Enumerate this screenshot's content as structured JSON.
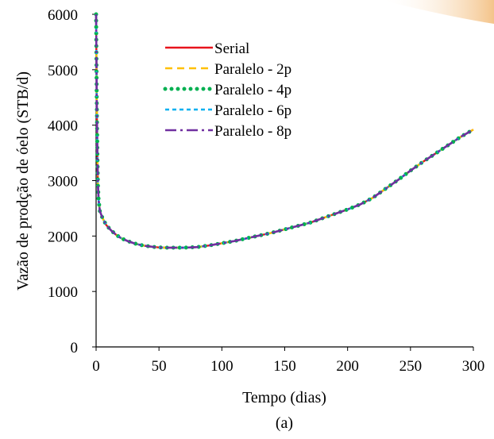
{
  "chart_data": {
    "type": "line",
    "title": "",
    "caption": "(a)",
    "xlabel": "Tempo (dias)",
    "ylabel": "Vazão de prodção de óelo (STB/d)",
    "xlim": [
      0,
      300
    ],
    "ylim": [
      0,
      6000
    ],
    "xticks": [
      "0",
      "50",
      "100",
      "150",
      "200",
      "250",
      "300"
    ],
    "yticks": [
      "0",
      "1000",
      "2000",
      "3000",
      "4000",
      "5000",
      "6000"
    ],
    "grid": false,
    "legend_position": "upper-left inside plot",
    "x": [
      0,
      0.5,
      1,
      1.5,
      2,
      3,
      5,
      8,
      12,
      16,
      20,
      25,
      30,
      35,
      40,
      45,
      50,
      55,
      60,
      65,
      70,
      75,
      80,
      90,
      100,
      110,
      120,
      130,
      140,
      150,
      160,
      170,
      180,
      190,
      200,
      210,
      220,
      230,
      240,
      250,
      260,
      270,
      280,
      290,
      300
    ],
    "series": [
      {
        "name": "Serial",
        "color": "#e8141c",
        "style": "solid",
        "values": [
          6000,
          4500,
          3500,
          2900,
          2650,
          2450,
          2330,
          2200,
          2100,
          2020,
          1960,
          1910,
          1870,
          1840,
          1820,
          1805,
          1795,
          1790,
          1790,
          1790,
          1790,
          1795,
          1800,
          1830,
          1870,
          1910,
          1960,
          2010,
          2060,
          2120,
          2180,
          2240,
          2320,
          2400,
          2480,
          2570,
          2690,
          2850,
          3010,
          3180,
          3340,
          3490,
          3640,
          3790,
          3920
        ]
      },
      {
        "name": "Paralelo - 2p",
        "color": "#ffc000",
        "style": "dash",
        "values": [
          6000,
          4500,
          3500,
          2900,
          2650,
          2450,
          2330,
          2200,
          2100,
          2020,
          1960,
          1910,
          1870,
          1840,
          1820,
          1805,
          1795,
          1790,
          1790,
          1790,
          1790,
          1795,
          1800,
          1830,
          1870,
          1910,
          1960,
          2010,
          2060,
          2120,
          2180,
          2240,
          2320,
          2400,
          2480,
          2570,
          2690,
          2850,
          3010,
          3180,
          3340,
          3490,
          3640,
          3790,
          3920
        ]
      },
      {
        "name": "Paralelo - 4p",
        "color": "#00b050",
        "style": "dot",
        "values": [
          6000,
          4500,
          3500,
          2900,
          2650,
          2450,
          2330,
          2200,
          2100,
          2020,
          1960,
          1910,
          1870,
          1840,
          1820,
          1805,
          1795,
          1790,
          1790,
          1790,
          1790,
          1795,
          1800,
          1830,
          1870,
          1910,
          1960,
          2010,
          2060,
          2120,
          2180,
          2240,
          2320,
          2400,
          2480,
          2570,
          2690,
          2850,
          3010,
          3180,
          3340,
          3490,
          3640,
          3790,
          3920
        ]
      },
      {
        "name": "Paralelo - 6p",
        "color": "#00b0f0",
        "style": "short-dash",
        "values": [
          6000,
          4500,
          3500,
          2900,
          2650,
          2450,
          2330,
          2200,
          2100,
          2020,
          1960,
          1910,
          1870,
          1840,
          1820,
          1805,
          1795,
          1790,
          1790,
          1790,
          1790,
          1795,
          1800,
          1830,
          1870,
          1910,
          1960,
          2010,
          2060,
          2120,
          2180,
          2240,
          2320,
          2400,
          2480,
          2570,
          2690,
          2850,
          3010,
          3180,
          3340,
          3490,
          3640,
          3790,
          3920
        ]
      },
      {
        "name": "Paralelo - 8p",
        "color": "#7030a0",
        "style": "dash-dot",
        "values": [
          6000,
          4500,
          3500,
          2900,
          2650,
          2450,
          2330,
          2200,
          2100,
          2020,
          1960,
          1910,
          1870,
          1840,
          1820,
          1805,
          1795,
          1790,
          1790,
          1790,
          1790,
          1795,
          1800,
          1830,
          1870,
          1910,
          1960,
          2010,
          2060,
          2120,
          2180,
          2240,
          2320,
          2400,
          2480,
          2570,
          2690,
          2850,
          3010,
          3180,
          3340,
          3490,
          3640,
          3790,
          3920
        ]
      }
    ]
  }
}
